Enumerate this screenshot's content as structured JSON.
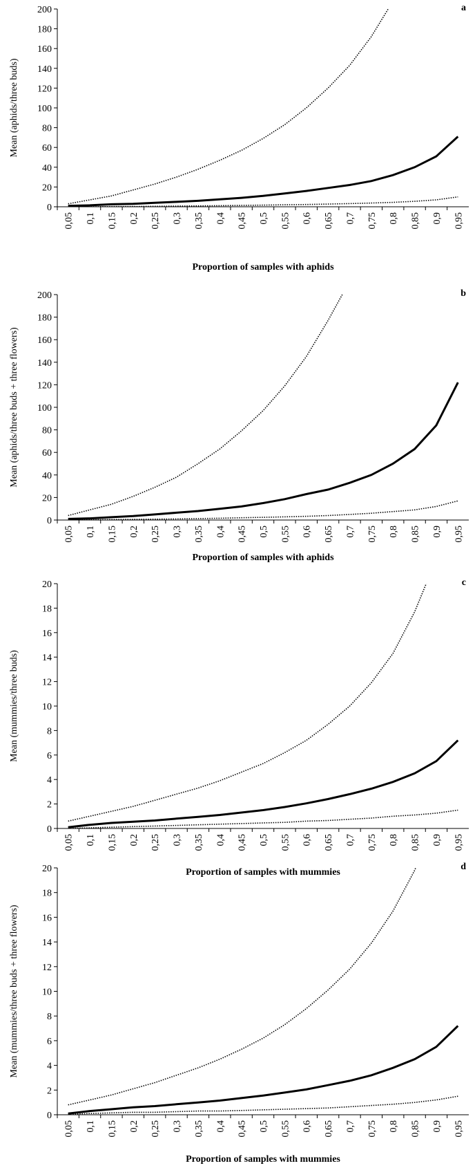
{
  "chart_data": [
    {
      "type": "line",
      "label": "a",
      "y_label": "Mean (aphids/three buds)",
      "x_label": "Proportion of samples with aphids",
      "categories": [
        "0,05",
        "0,1",
        "0,15",
        "0,2",
        "0,25",
        "0,3",
        "0,35",
        "0,4",
        "0,45",
        "0,5",
        "0,55",
        "0,6",
        "0,65",
        "0,7",
        "0,75",
        "0,8",
        "0,85",
        "0,9",
        "0,95"
      ],
      "ylim": [
        0,
        200
      ],
      "yticks": [
        0,
        20,
        40,
        60,
        80,
        100,
        120,
        140,
        160,
        180,
        200
      ],
      "series": [
        {
          "color": "#000000",
          "line_style": "dotted",
          "values": [
            3,
            7,
            11,
            17,
            23,
            30,
            38,
            47,
            57,
            69,
            83,
            100,
            120,
            143,
            172,
            208,
            null,
            null,
            null
          ]
        },
        {
          "color": "#000000",
          "line_style": "solid",
          "values": [
            1,
            1.5,
            2.5,
            3,
            4,
            5,
            6,
            7.5,
            9,
            11,
            13.5,
            16,
            19,
            22,
            26,
            32,
            40,
            51,
            71
          ]
        },
        {
          "color": "#000000",
          "line_style": "dotted",
          "values": [
            0,
            0,
            0.2,
            0.3,
            0.5,
            0.7,
            0.9,
            1.1,
            1.4,
            1.7,
            2,
            2.3,
            2.7,
            3.2,
            3.8,
            4.5,
            5.5,
            7,
            10
          ]
        }
      ]
    },
    {
      "type": "line",
      "label": "b",
      "y_label": "Mean (aphids/three buds + three flowers)",
      "x_label": "Proportion of samples with aphids",
      "categories": [
        "0,05",
        "0,1",
        "0,15",
        "0,2",
        "0,25",
        "0,3",
        "0,35",
        "0,4",
        "0,45",
        "0,5",
        "0,55",
        "0,6",
        "0,65",
        "0,7",
        "0,75",
        "0,8",
        "0,85",
        "0,9",
        "0,95"
      ],
      "ylim": [
        0,
        200
      ],
      "yticks": [
        0,
        20,
        40,
        60,
        80,
        100,
        120,
        140,
        160,
        180,
        200
      ],
      "series": [
        {
          "color": "#000000",
          "line_style": "dotted",
          "values": [
            4,
            9,
            14,
            21,
            29,
            38,
            50,
            63,
            79,
            97,
            119,
            145,
            177,
            212,
            null,
            null,
            null,
            null,
            null
          ]
        },
        {
          "color": "#000000",
          "line_style": "solid",
          "values": [
            1,
            1.5,
            2.5,
            3.5,
            5,
            6.5,
            8,
            10,
            12,
            15,
            18.5,
            23,
            27,
            33,
            40,
            50,
            63,
            84,
            122
          ]
        },
        {
          "color": "#000000",
          "line_style": "dotted",
          "values": [
            0,
            0.2,
            0.4,
            0.6,
            0.8,
            1,
            1.3,
            1.6,
            2,
            2.4,
            2.8,
            3.3,
            4,
            5,
            6,
            7.5,
            9,
            12,
            17
          ]
        }
      ]
    },
    {
      "type": "line",
      "label": "c",
      "y_label": "Mean (mummies/three buds)",
      "x_label": "Proportion of samples with mummies",
      "categories": [
        "0,05",
        "0,1",
        "0,15",
        "0,2",
        "0,25",
        "0,3",
        "0,35",
        "0,4",
        "0,45",
        "0,5",
        "0,55",
        "0,6",
        "0,65",
        "0,7",
        "0,75",
        "0,8",
        "0,85",
        "0,9",
        "0,95"
      ],
      "ylim": [
        0,
        20
      ],
      "yticks": [
        0,
        2,
        4,
        6,
        8,
        10,
        12,
        14,
        16,
        18,
        20
      ],
      "series": [
        {
          "color": "#000000",
          "line_style": "dotted",
          "values": [
            0.6,
            1,
            1.4,
            1.8,
            2.3,
            2.8,
            3.3,
            3.9,
            4.6,
            5.3,
            6.2,
            7.2,
            8.5,
            10,
            11.9,
            14.3,
            17.7,
            22,
            null
          ]
        },
        {
          "color": "#000000",
          "line_style": "solid",
          "values": [
            0.1,
            0.3,
            0.45,
            0.55,
            0.65,
            0.8,
            0.95,
            1.1,
            1.3,
            1.5,
            1.75,
            2.05,
            2.4,
            2.8,
            3.25,
            3.8,
            4.5,
            5.5,
            7.2
          ]
        },
        {
          "color": "#000000",
          "line_style": "dotted",
          "values": [
            0,
            0.05,
            0.1,
            0.15,
            0.2,
            0.25,
            0.3,
            0.35,
            0.4,
            0.45,
            0.5,
            0.6,
            0.65,
            0.75,
            0.85,
            1,
            1.1,
            1.25,
            1.5
          ]
        }
      ]
    },
    {
      "type": "line",
      "label": "d",
      "y_label": "Mean (mummies/three buds + three flowers)",
      "x_label": "Proportion of samples with mummies",
      "categories": [
        "0,05",
        "0,1",
        "0,15",
        "0,2",
        "0,25",
        "0,3",
        "0,35",
        "0,4",
        "0,45",
        "0,5",
        "0,55",
        "0,6",
        "0,65",
        "0,7",
        "0,75",
        "0,8",
        "0,85",
        "0,9",
        "0,95"
      ],
      "ylim": [
        0,
        20
      ],
      "yticks": [
        0,
        2,
        4,
        6,
        8,
        10,
        12,
        14,
        16,
        18,
        20
      ],
      "series": [
        {
          "color": "#000000",
          "line_style": "dotted",
          "values": [
            0.8,
            1.2,
            1.6,
            2.1,
            2.6,
            3.2,
            3.8,
            4.5,
            5.3,
            6.2,
            7.3,
            8.6,
            10.1,
            11.8,
            13.9,
            16.5,
            19.8,
            24,
            null
          ]
        },
        {
          "color": "#000000",
          "line_style": "solid",
          "values": [
            0.1,
            0.3,
            0.45,
            0.6,
            0.7,
            0.85,
            1,
            1.15,
            1.35,
            1.55,
            1.8,
            2.05,
            2.4,
            2.75,
            3.2,
            3.8,
            4.5,
            5.5,
            7.2
          ]
        },
        {
          "color": "#000000",
          "line_style": "dotted",
          "values": [
            0.05,
            0.1,
            0.15,
            0.2,
            0.2,
            0.25,
            0.3,
            0.3,
            0.35,
            0.4,
            0.45,
            0.5,
            0.55,
            0.65,
            0.75,
            0.85,
            1,
            1.2,
            1.5
          ]
        }
      ]
    }
  ]
}
